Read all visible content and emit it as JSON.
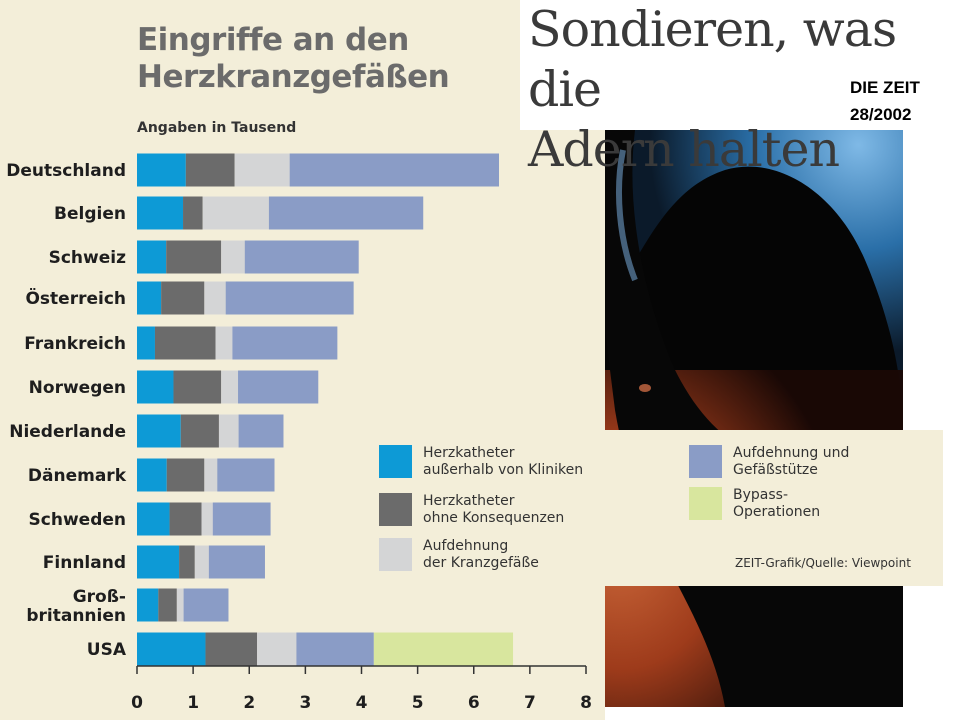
{
  "headline": {
    "line1": "Sondieren, was die",
    "line2": "Adern halten",
    "source_line1": "DIE ZEIT",
    "source_line2": "28/2002"
  },
  "credit": "ZEIT-Grafik/Quelle: Viewpoint",
  "colors": {
    "katheter_ausserhalb": "#0d9ad6",
    "katheter_ohne": "#6b6b6b",
    "aufdehnung_kranz": "#d4d5d6",
    "aufdehnung_stuetze": "#8a9cc6",
    "bypass": "#d8e69e",
    "panel_bg": "#f3eed9"
  },
  "legend": [
    {
      "line1": "Herzkatheter",
      "line2": "außerhalb von Kliniken",
      "color": "#0d9ad6"
    },
    {
      "line1": "Herzkatheter",
      "line2": "ohne Konsequenzen",
      "color": "#6b6b6b"
    },
    {
      "line1": "Aufdehnung",
      "line2": "der Kranzgefäße",
      "color": "#d4d5d6"
    },
    {
      "line1": "Aufdehnung und",
      "line2": "Gefäßstütze",
      "color": "#8a9cc6"
    },
    {
      "line1": "Bypass-",
      "line2": "Operationen",
      "color": "#d8e69e"
    }
  ],
  "chart_data": {
    "type": "bar",
    "orientation": "horizontal",
    "stacked": true,
    "title": "Eingriffe an den Herzkranzgefäßen",
    "title_line1": "Eingriffe an den",
    "title_line2": "Herzkranzgefäßen",
    "subtitle": "Angaben in Tausend",
    "xlim": [
      0,
      8
    ],
    "xticks": [
      "0",
      "1",
      "2",
      "3",
      "4",
      "5",
      "6",
      "7",
      "8"
    ],
    "categories": [
      [
        "Deutschland"
      ],
      [
        "Belgien"
      ],
      [
        "Schweiz"
      ],
      [
        "Österreich"
      ],
      [
        "Frankreich"
      ],
      [
        "Norwegen"
      ],
      [
        "Niederlande"
      ],
      [
        "Dänemark"
      ],
      [
        "Schweden"
      ],
      [
        "Finnland"
      ],
      [
        "Groß-",
        "britannien"
      ],
      [
        "USA"
      ]
    ],
    "series": [
      {
        "name": "Herzkatheter außerhalb von Kliniken",
        "color": "#0d9ad6",
        "values": [
          0.87,
          0.82,
          0.52,
          0.43,
          0.32,
          0.65,
          0.78,
          0.53,
          0.58,
          0.75,
          0.38,
          1.22
        ]
      },
      {
        "name": "Herzkatheter ohne Konsequenzen",
        "color": "#6b6b6b",
        "values": [
          0.87,
          0.35,
          0.98,
          0.77,
          1.08,
          0.85,
          0.68,
          0.67,
          0.57,
          0.28,
          0.33,
          0.92
        ]
      },
      {
        "name": "Aufdehnung der Kranzgefäße",
        "color": "#d4d5d6",
        "values": [
          0.98,
          1.18,
          0.42,
          0.38,
          0.3,
          0.3,
          0.35,
          0.23,
          0.2,
          0.25,
          0.12,
          0.7
        ]
      },
      {
        "name": "Aufdehnung und Gefäßstütze",
        "color": "#8a9cc6",
        "values": [
          3.73,
          2.75,
          2.03,
          2.28,
          1.87,
          1.43,
          0.8,
          1.02,
          1.03,
          1.0,
          0.8,
          1.38
        ]
      },
      {
        "name": "Bypass-Operationen",
        "color": "#d8e69e",
        "values": [
          0,
          0,
          0,
          0,
          0,
          0,
          0,
          0,
          0,
          0,
          0,
          2.48
        ]
      }
    ]
  }
}
